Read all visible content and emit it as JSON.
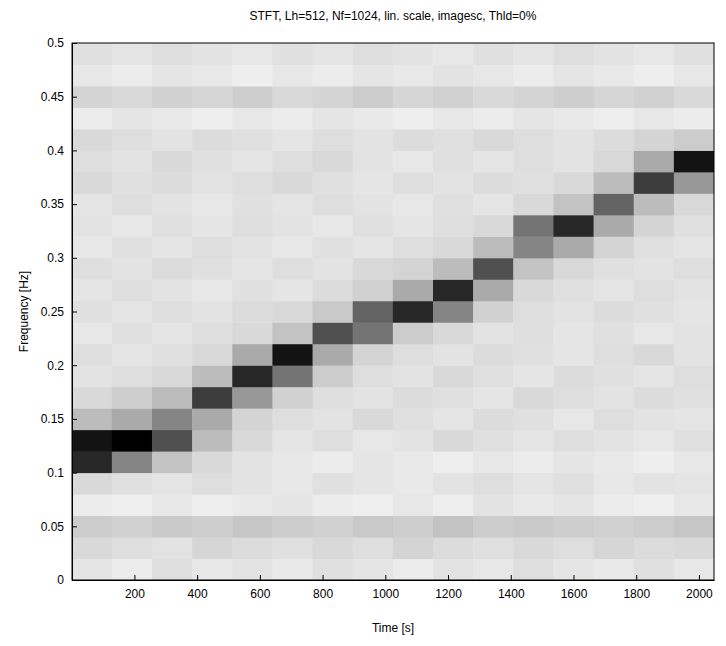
{
  "chart_data": {
    "type": "heatmap",
    "title": "STFT, Lh=512, Nf=1024, lin. scale, imagesc, Thld=0%",
    "x_label": "Time [s]",
    "y_label": "Frequency [Hz]",
    "xlim": [
      1,
      2048
    ],
    "ylim": [
      0,
      0.5
    ],
    "xticks": [
      200,
      400,
      600,
      800,
      1000,
      1200,
      1400,
      1600,
      1800,
      2000
    ],
    "yticks": [
      0,
      0.05,
      0.1,
      0.15,
      0.2,
      0.25,
      0.3,
      0.35,
      0.4,
      0.45,
      0.5
    ],
    "x_bins": [
      0,
      128,
      256,
      384,
      512,
      640,
      768,
      896,
      1024,
      1152,
      1280,
      1408,
      1536,
      1664,
      1792,
      1920,
      2048
    ],
    "y_bins": [
      0,
      0.02,
      0.04,
      0.06,
      0.08,
      0.1,
      0.12,
      0.14,
      0.16,
      0.18,
      0.2,
      0.22,
      0.24,
      0.26,
      0.28,
      0.3,
      0.32,
      0.34,
      0.36,
      0.38,
      0.4,
      0.42,
      0.44,
      0.46,
      0.48,
      0.5
    ],
    "z": [
      [
        0.25,
        0.22,
        0.28,
        0.24,
        0.26,
        0.23,
        0.27,
        0.25,
        0.22,
        0.26,
        0.24,
        0.28,
        0.25,
        0.23,
        0.27,
        0.24
      ],
      [
        0.3,
        0.28,
        0.26,
        0.31,
        0.29,
        0.27,
        0.3,
        0.28,
        0.32,
        0.29,
        0.27,
        0.3,
        0.28,
        0.31,
        0.29,
        0.3
      ],
      [
        0.35,
        0.33,
        0.36,
        0.34,
        0.37,
        0.35,
        0.33,
        0.36,
        0.34,
        0.38,
        0.35,
        0.36,
        0.34,
        0.33,
        0.35,
        0.37
      ],
      [
        0.22,
        0.2,
        0.24,
        0.21,
        0.23,
        0.25,
        0.22,
        0.2,
        0.24,
        0.21,
        0.26,
        0.23,
        0.25,
        0.22,
        0.2,
        0.24
      ],
      [
        0.3,
        0.27,
        0.25,
        0.28,
        0.26,
        0.24,
        0.27,
        0.25,
        0.23,
        0.26,
        0.28,
        0.25,
        0.27,
        0.24,
        0.26,
        0.25
      ],
      [
        0.8,
        0.55,
        0.38,
        0.3,
        0.26,
        0.24,
        0.22,
        0.25,
        0.23,
        0.21,
        0.24,
        0.22,
        0.25,
        0.23,
        0.21,
        0.24
      ],
      [
        0.85,
        0.9,
        0.7,
        0.4,
        0.3,
        0.25,
        0.28,
        0.24,
        0.26,
        0.3,
        0.27,
        0.25,
        0.28,
        0.26,
        0.24,
        0.27
      ],
      [
        0.4,
        0.45,
        0.55,
        0.45,
        0.32,
        0.28,
        0.26,
        0.3,
        0.27,
        0.25,
        0.29,
        0.27,
        0.24,
        0.28,
        0.26,
        0.25
      ],
      [
        0.3,
        0.34,
        0.4,
        0.75,
        0.5,
        0.33,
        0.28,
        0.26,
        0.29,
        0.27,
        0.25,
        0.3,
        0.28,
        0.26,
        0.29,
        0.27
      ],
      [
        0.26,
        0.28,
        0.3,
        0.4,
        0.8,
        0.6,
        0.35,
        0.28,
        0.26,
        0.3,
        0.27,
        0.25,
        0.29,
        0.27,
        0.25,
        0.28
      ],
      [
        0.28,
        0.25,
        0.27,
        0.3,
        0.45,
        0.85,
        0.45,
        0.32,
        0.28,
        0.26,
        0.29,
        0.27,
        0.25,
        0.28,
        0.3,
        0.26
      ],
      [
        0.24,
        0.27,
        0.25,
        0.28,
        0.3,
        0.38,
        0.7,
        0.6,
        0.35,
        0.3,
        0.26,
        0.28,
        0.25,
        0.27,
        0.24,
        0.26
      ],
      [
        0.27,
        0.25,
        0.28,
        0.26,
        0.29,
        0.3,
        0.36,
        0.65,
        0.8,
        0.55,
        0.33,
        0.28,
        0.26,
        0.29,
        0.27,
        0.25
      ],
      [
        0.25,
        0.28,
        0.26,
        0.24,
        0.27,
        0.25,
        0.29,
        0.33,
        0.45,
        0.8,
        0.45,
        0.3,
        0.27,
        0.25,
        0.28,
        0.26
      ],
      [
        0.28,
        0.26,
        0.29,
        0.27,
        0.25,
        0.28,
        0.26,
        0.3,
        0.32,
        0.4,
        0.7,
        0.38,
        0.3,
        0.27,
        0.26,
        0.28
      ],
      [
        0.24,
        0.27,
        0.25,
        0.28,
        0.26,
        0.24,
        0.27,
        0.25,
        0.28,
        0.3,
        0.4,
        0.55,
        0.45,
        0.32,
        0.27,
        0.25
      ],
      [
        0.26,
        0.24,
        0.27,
        0.25,
        0.28,
        0.26,
        0.24,
        0.27,
        0.25,
        0.28,
        0.3,
        0.6,
        0.8,
        0.45,
        0.32,
        0.27
      ],
      [
        0.25,
        0.28,
        0.26,
        0.24,
        0.27,
        0.25,
        0.28,
        0.26,
        0.24,
        0.27,
        0.25,
        0.3,
        0.38,
        0.65,
        0.4,
        0.3
      ],
      [
        0.3,
        0.27,
        0.29,
        0.26,
        0.28,
        0.3,
        0.27,
        0.25,
        0.28,
        0.26,
        0.29,
        0.27,
        0.3,
        0.4,
        0.75,
        0.5
      ],
      [
        0.28,
        0.26,
        0.3,
        0.27,
        0.25,
        0.28,
        0.3,
        0.26,
        0.24,
        0.27,
        0.25,
        0.28,
        0.26,
        0.3,
        0.45,
        0.85
      ],
      [
        0.3,
        0.28,
        0.26,
        0.29,
        0.27,
        0.25,
        0.28,
        0.26,
        0.29,
        0.27,
        0.3,
        0.28,
        0.26,
        0.29,
        0.32,
        0.35
      ],
      [
        0.22,
        0.25,
        0.23,
        0.21,
        0.24,
        0.22,
        0.25,
        0.23,
        0.21,
        0.24,
        0.22,
        0.25,
        0.23,
        0.21,
        0.24,
        0.22
      ],
      [
        0.32,
        0.3,
        0.33,
        0.31,
        0.34,
        0.3,
        0.32,
        0.35,
        0.31,
        0.33,
        0.3,
        0.32,
        0.34,
        0.31,
        0.33,
        0.3
      ],
      [
        0.24,
        0.22,
        0.25,
        0.23,
        0.21,
        0.24,
        0.22,
        0.25,
        0.23,
        0.26,
        0.24,
        0.22,
        0.25,
        0.23,
        0.21,
        0.24
      ],
      [
        0.27,
        0.25,
        0.28,
        0.26,
        0.24,
        0.27,
        0.25,
        0.28,
        0.26,
        0.24,
        0.27,
        0.25,
        0.28,
        0.26,
        0.24,
        0.27
      ]
    ]
  }
}
